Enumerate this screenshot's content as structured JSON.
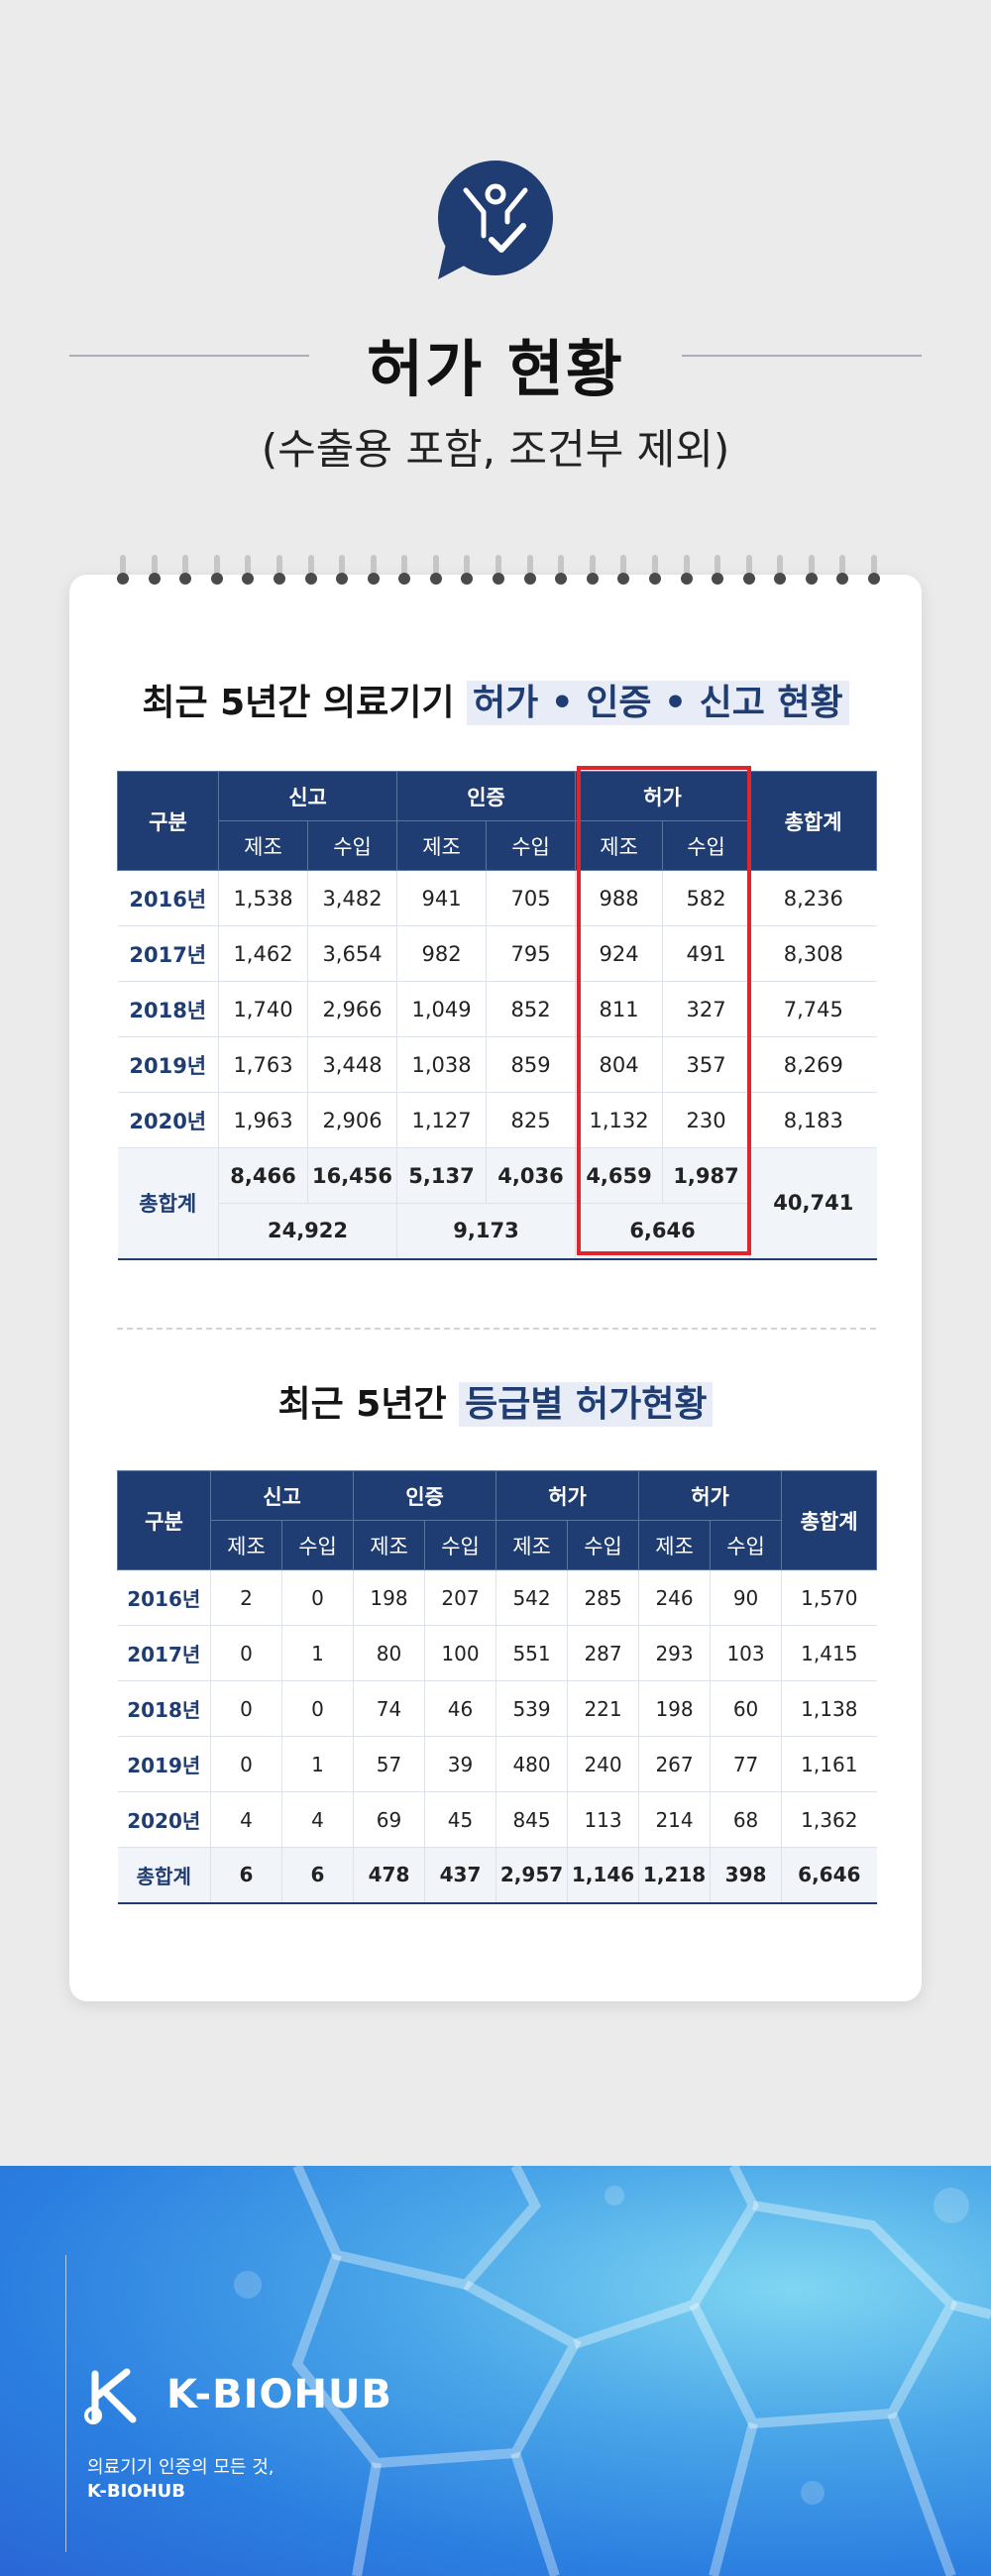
{
  "header": {
    "title": "허가 현황",
    "subtitle": "(수출용 포함, 조건부 제외)"
  },
  "section1": {
    "title_prefix": "최근 5년간 의료기기 ",
    "title_highlight": "허가 • 인증 • 신고 현황",
    "col_label": "구분",
    "groups": [
      "신고",
      "인증",
      "허가"
    ],
    "total_label": "총합계",
    "sub_labels": [
      "제조",
      "수입"
    ],
    "rows": [
      {
        "year": "2016년",
        "values": [
          "1,538",
          "3,482",
          "941",
          "705",
          "988",
          "582"
        ],
        "total": "8,236"
      },
      {
        "year": "2017년",
        "values": [
          "1,462",
          "3,654",
          "982",
          "795",
          "924",
          "491"
        ],
        "total": "8,308"
      },
      {
        "year": "2018년",
        "values": [
          "1,740",
          "2,966",
          "1,049",
          "852",
          "811",
          "327"
        ],
        "total": "7,745"
      },
      {
        "year": "2019년",
        "values": [
          "1,763",
          "3,448",
          "1,038",
          "859",
          "804",
          "357"
        ],
        "total": "8,269"
      },
      {
        "year": "2020년",
        "values": [
          "1,963",
          "2,906",
          "1,127",
          "825",
          "1,132",
          "230"
        ],
        "total": "8,183"
      }
    ],
    "totals": {
      "label": "총합계",
      "values": [
        "8,466",
        "16,456",
        "5,137",
        "4,036",
        "4,659",
        "1,987"
      ],
      "group_sums": [
        "24,922",
        "9,173",
        "6,646"
      ],
      "grand": "40,741"
    }
  },
  "section2": {
    "title_prefix": "최근 5년간 ",
    "title_highlight": "등급별 허가현황",
    "col_label": "구분",
    "groups": [
      "신고",
      "인증",
      "허가",
      "허가"
    ],
    "total_label": "총합계",
    "sub_labels": [
      "제조",
      "수입"
    ],
    "rows": [
      {
        "year": "2016년",
        "values": [
          "2",
          "0",
          "198",
          "207",
          "542",
          "285",
          "246",
          "90"
        ],
        "total": "1,570"
      },
      {
        "year": "2017년",
        "values": [
          "0",
          "1",
          "80",
          "100",
          "551",
          "287",
          "293",
          "103"
        ],
        "total": "1,415"
      },
      {
        "year": "2018년",
        "values": [
          "0",
          "0",
          "74",
          "46",
          "539",
          "221",
          "198",
          "60"
        ],
        "total": "1,138"
      },
      {
        "year": "2019년",
        "values": [
          "0",
          "1",
          "57",
          "39",
          "480",
          "240",
          "267",
          "77"
        ],
        "total": "1,161"
      },
      {
        "year": "2020년",
        "values": [
          "4",
          "4",
          "69",
          "45",
          "845",
          "113",
          "214",
          "68"
        ],
        "total": "1,362"
      }
    ],
    "totals": {
      "label": "총합계",
      "values": [
        "6",
        "6",
        "478",
        "437",
        "2,957",
        "1,146",
        "1,218",
        "398"
      ],
      "grand": "6,646"
    }
  },
  "footer": {
    "brand": "K-BIOHUB",
    "tagline": "의료기기 인증의 모든 것,",
    "tagline_brand": "K-BIOHUB"
  },
  "colors": {
    "navy": "#1f3d72",
    "highlight_red": "#e0262d",
    "footer_blue": "#2b7fe0"
  },
  "icons": [
    "person-check-chat-icon",
    "k-biohub-logo-icon"
  ]
}
